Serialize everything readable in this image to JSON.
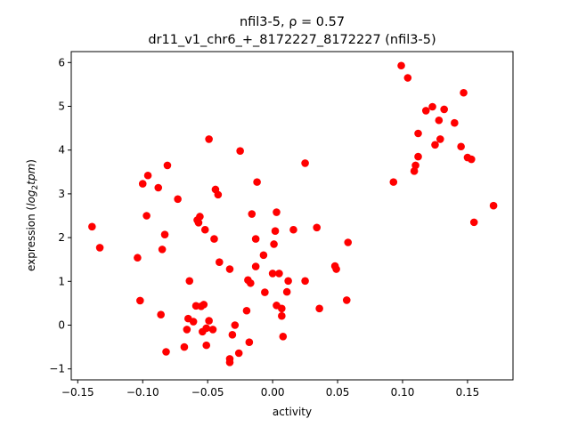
{
  "chart_data": {
    "type": "scatter",
    "title": "nfil3-5, ρ = 0.57",
    "subtitle": "dr11_v1_chr6_+_8172227_8172227 (nfil3-5)",
    "xlabel": "activity",
    "ylabel_prefix": "expression (",
    "ylabel_math": "log",
    "ylabel_sub": "2",
    "ylabel_math2": "tpm",
    "ylabel_suffix": ")",
    "xlim": [
      -0.155,
      0.185
    ],
    "ylim": [
      -1.25,
      6.25
    ],
    "x_ticks": [
      -0.15,
      -0.1,
      -0.05,
      0.0,
      0.05,
      0.1,
      0.15
    ],
    "x_tick_labels": [
      "−0.15",
      "−0.10",
      "−0.05",
      "0.00",
      "0.05",
      "0.10",
      "0.15"
    ],
    "y_ticks": [
      -1,
      0,
      1,
      2,
      3,
      4,
      5,
      6
    ],
    "y_tick_labels": [
      "−1",
      "0",
      "1",
      "2",
      "3",
      "4",
      "5",
      "6"
    ],
    "grid": false,
    "marker_color": "#ff0000",
    "series": [
      {
        "points": [
          [
            -0.139,
            2.25
          ],
          [
            -0.133,
            1.77
          ],
          [
            -0.104,
            1.54
          ],
          [
            -0.102,
            0.56
          ],
          [
            -0.1,
            3.23
          ],
          [
            -0.096,
            3.42
          ],
          [
            -0.097,
            2.5
          ],
          [
            -0.088,
            3.14
          ],
          [
            -0.086,
            0.24
          ],
          [
            -0.085,
            1.73
          ],
          [
            -0.083,
            2.07
          ],
          [
            -0.081,
            3.65
          ],
          [
            -0.082,
            -0.61
          ],
          [
            -0.073,
            2.88
          ],
          [
            -0.068,
            -0.5
          ],
          [
            -0.066,
            -0.1
          ],
          [
            -0.065,
            0.15
          ],
          [
            -0.064,
            1.01
          ],
          [
            -0.061,
            0.08
          ],
          [
            -0.059,
            0.44
          ],
          [
            -0.058,
            2.4
          ],
          [
            -0.057,
            2.34
          ],
          [
            -0.056,
            2.48
          ],
          [
            -0.055,
            0.43
          ],
          [
            -0.054,
            -0.15
          ],
          [
            -0.053,
            0.47
          ],
          [
            -0.052,
            2.18
          ],
          [
            -0.051,
            -0.07
          ],
          [
            -0.051,
            -0.46
          ],
          [
            -0.049,
            0.1
          ],
          [
            -0.049,
            4.25
          ],
          [
            -0.046,
            -0.1
          ],
          [
            -0.045,
            1.97
          ],
          [
            -0.044,
            3.1
          ],
          [
            -0.042,
            2.98
          ],
          [
            -0.041,
            1.44
          ],
          [
            -0.033,
            -0.77
          ],
          [
            -0.033,
            -0.85
          ],
          [
            -0.033,
            1.28
          ],
          [
            -0.031,
            -0.22
          ],
          [
            -0.029,
            0.0
          ],
          [
            -0.026,
            -0.64
          ],
          [
            -0.025,
            3.98
          ],
          [
            -0.02,
            0.33
          ],
          [
            -0.019,
            1.03
          ],
          [
            -0.018,
            -0.39
          ],
          [
            -0.017,
            0.96
          ],
          [
            -0.016,
            2.54
          ],
          [
            -0.013,
            1.34
          ],
          [
            -0.013,
            1.97
          ],
          [
            -0.012,
            3.27
          ],
          [
            -0.007,
            1.6
          ],
          [
            -0.006,
            0.75
          ],
          [
            0.0,
            1.18
          ],
          [
            0.001,
            1.85
          ],
          [
            0.002,
            2.15
          ],
          [
            0.003,
            0.45
          ],
          [
            0.003,
            2.58
          ],
          [
            0.005,
            1.18
          ],
          [
            0.007,
            0.38
          ],
          [
            0.007,
            0.21
          ],
          [
            0.008,
            -0.26
          ],
          [
            0.011,
            0.76
          ],
          [
            0.012,
            1.01
          ],
          [
            0.016,
            2.18
          ],
          [
            0.025,
            1.01
          ],
          [
            0.025,
            3.7
          ],
          [
            0.034,
            2.23
          ],
          [
            0.036,
            0.38
          ],
          [
            0.048,
            1.35
          ],
          [
            0.049,
            1.28
          ],
          [
            0.057,
            0.57
          ],
          [
            0.058,
            1.89
          ],
          [
            0.093,
            3.27
          ],
          [
            0.099,
            5.93
          ],
          [
            0.104,
            5.65
          ],
          [
            0.109,
            3.52
          ],
          [
            0.11,
            3.65
          ],
          [
            0.112,
            3.85
          ],
          [
            0.112,
            4.38
          ],
          [
            0.118,
            4.9
          ],
          [
            0.123,
            4.99
          ],
          [
            0.125,
            4.12
          ],
          [
            0.128,
            4.68
          ],
          [
            0.129,
            4.25
          ],
          [
            0.132,
            4.93
          ],
          [
            0.14,
            4.62
          ],
          [
            0.145,
            4.08
          ],
          [
            0.147,
            5.31
          ],
          [
            0.15,
            3.83
          ],
          [
            0.153,
            3.79
          ],
          [
            0.155,
            2.35
          ],
          [
            0.17,
            2.73
          ]
        ]
      }
    ]
  }
}
